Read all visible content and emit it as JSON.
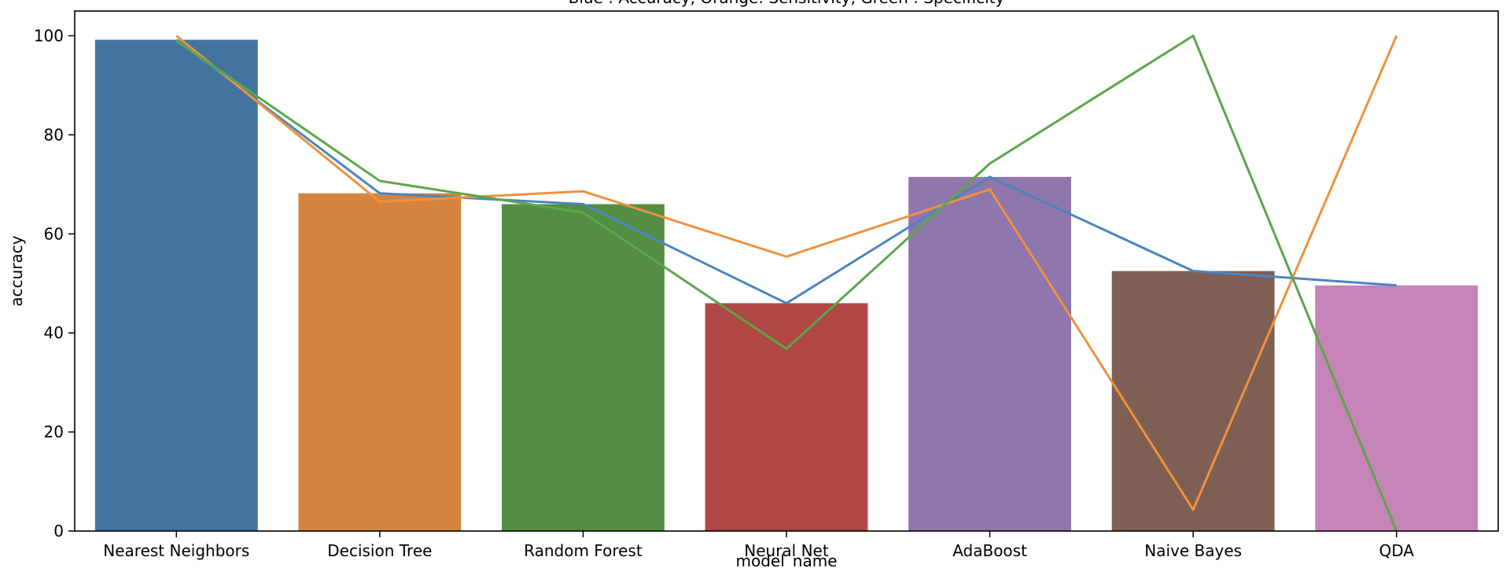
{
  "chart_data": {
    "type": "bar",
    "title": "Blue : Accuracy, Orange: Sensitivity, Green : Specificity",
    "xlabel": "model_name",
    "ylabel": "accuracy",
    "ylim": [
      0,
      105
    ],
    "yticks": [
      0,
      20,
      40,
      60,
      80,
      100
    ],
    "grid": false,
    "categories": [
      "Nearest Neighbors",
      "Decision Tree",
      "Random Forest",
      "Neural Net",
      "AdaBoost",
      "Naive Bayes",
      "QDA"
    ],
    "values": [
      99.2,
      68.2,
      66.0,
      46.0,
      71.5,
      52.5,
      49.6
    ],
    "bar_colors": [
      "#4374a0",
      "#d4843e",
      "#548e45",
      "#b04744",
      "#8f76ad",
      "#7f5e53",
      "#c684b9"
    ],
    "series": [
      {
        "values": [
          99.2,
          68.2,
          66.0,
          46.0,
          71.5,
          52.5,
          49.6
        ],
        "color": "#4a85c0"
      },
      {
        "values": [
          100.0,
          66.5,
          68.6,
          55.4,
          69.0,
          4.3,
          100.0
        ],
        "color": "#f0913f"
      },
      {
        "values": [
          99.0,
          70.7,
          64.3,
          36.8,
          74.2,
          100.0,
          0.0
        ],
        "color": "#5ba64a"
      }
    ]
  }
}
